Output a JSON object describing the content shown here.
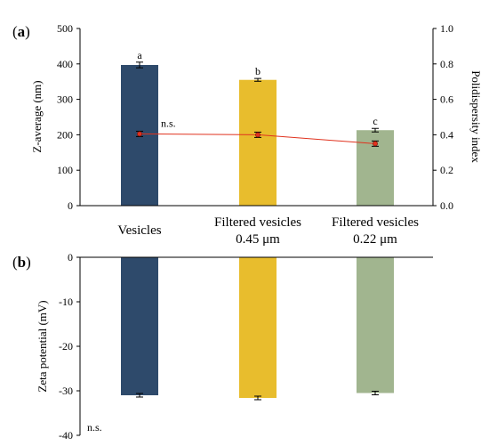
{
  "chart_data": [
    {
      "panel_label": "(a)",
      "type": "bar",
      "categories": [
        "Vesicles",
        "Filtered vesicles\n0.45 μm",
        "Filtered vesicles\n0.22 μm"
      ],
      "series": [
        {
          "type": "bar",
          "axis": "left",
          "values": [
            397,
            355,
            213
          ],
          "errors": [
            8,
            4,
            5
          ],
          "letters": [
            "a",
            "b",
            "c"
          ],
          "colors": [
            "#2e4a6b",
            "#e8bd2d",
            "#a1b58f"
          ]
        },
        {
          "type": "line",
          "axis": "right",
          "values": [
            0.405,
            0.4,
            0.35
          ],
          "errors": [
            0.015,
            0.015,
            0.015
          ],
          "color": "#e0321e",
          "annotation": "n.s."
        }
      ],
      "ylabel": "Z-average (nm)",
      "ylim": [
        0,
        500
      ],
      "yticks": [
        "0",
        "100",
        "200",
        "300",
        "400",
        "500"
      ],
      "y2label": "Polidispersity index",
      "y2lim": [
        0,
        1
      ],
      "y2ticks": [
        "0.0",
        "0.2",
        "0.4",
        "0.6",
        "0.8",
        "1.0"
      ],
      "grid": false
    },
    {
      "panel_label": "(b)",
      "type": "bar",
      "categories": [
        "Vesicles",
        "Filtered vesicles\n0.45 μm",
        "Filtered vesicles\n0.22 μm"
      ],
      "series": [
        {
          "type": "bar",
          "axis": "left",
          "values": [
            -31,
            -31.6,
            -30.5
          ],
          "errors": [
            0.4,
            0.4,
            0.4
          ],
          "colors": [
            "#2e4a6b",
            "#e8bd2d",
            "#a1b58f"
          ]
        }
      ],
      "annotation": "n.s.",
      "ylabel": "Zeta potential (mV)",
      "ylim": [
        -40,
        0
      ],
      "yticks": [
        "0",
        "-10",
        "-20",
        "-30",
        "-40"
      ],
      "grid": false
    }
  ]
}
